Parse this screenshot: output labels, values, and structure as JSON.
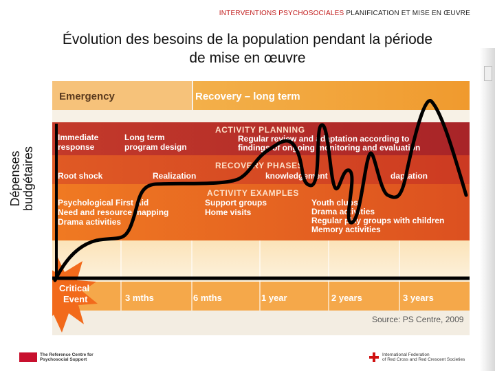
{
  "header": {
    "brand": "INTERVENTIONS PSYCHOSOCIALES",
    "rest": "PLANIFICATION ET MISE EN ŒUVRE"
  },
  "title": {
    "line1": "Évolution des besoins de la population pendant la période",
    "line2": "de mise en œuvre"
  },
  "y_axis": {
    "line1": "Dépenses",
    "line2": "budgétaires"
  },
  "figure": {
    "phase_emergency": "Emergency",
    "phase_recovery": "Recovery – long term",
    "planning_title": "ACTIVITY PLANNING",
    "planning_left_1": "Immediate",
    "planning_left_2": "response",
    "planning_mid_1": "Long term",
    "planning_mid_2": "program design",
    "planning_right_1": "Regular review and adaptation according to",
    "planning_right_2": "findings of ongoing monitoring and evaluation",
    "recovery_title": "RECOVERY PHASES",
    "rec_root": "Root shock",
    "rec_real": "Realization",
    "rec_ack": "knowledgement",
    "rec_adapt": "daptation",
    "examples_title": "ACTIVITY EXAMPLES",
    "ex_left_1": "Psychological First Aid",
    "ex_left_2": "Need and resource mapping",
    "ex_left_3": "Drama activities",
    "ex_mid_1": "Support groups",
    "ex_mid_2": "Home visits",
    "ex_right_1": "Youth clubs",
    "ex_right_2": "Drama activities",
    "ex_right_3": "Regular play groups with children",
    "ex_right_4": "Memory activities",
    "critical_1": "Critical",
    "critical_2": "Event",
    "time_labels": [
      "3 mths",
      "6 mths",
      "1 year",
      "2 years",
      "3 years"
    ],
    "source": "Source: PS Centre, 2009"
  },
  "footer": {
    "left_1": "The Reference Centre for",
    "left_2": "Psychosocial Support",
    "right_1": "International Federation",
    "right_2": "of Red Cross and Red Crescent Societies"
  },
  "colors": {
    "orange_band": "#f2a23a",
    "dark_red_band": "#b8282a",
    "mid_red_band": "#d64020",
    "red_orange_band": "#e2581e",
    "cream": "#fbe7c4",
    "starburst": "#f26a1b",
    "brand_red": "#c01818"
  }
}
